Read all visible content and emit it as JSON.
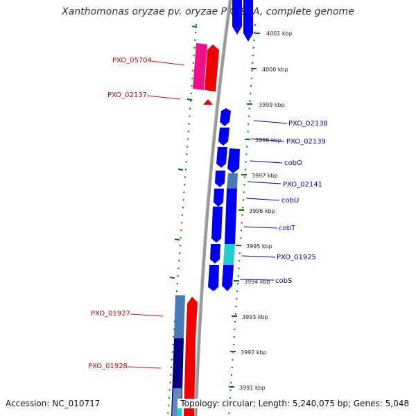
{
  "title": "Xanthomonas oryzae pv. oryzae PXO99A, complete genome",
  "footer": {
    "accession": "Accession: NC_010717",
    "topology": "Topology: circular; Length: 5,240,075 bp; Genes: 5,048"
  },
  "scale_labels": [
    "4001 kbp",
    "4000 kbp",
    "3999 kbp",
    "3998 kbp",
    "3997 kbp",
    "3996 kbp",
    "3995 kbp",
    "3994 kbp",
    "3993 kbp",
    "3992 kbp",
    "3991 kbp"
  ],
  "genes_left": [
    "PXO_05704",
    "PXO_02137",
    "PXO_01927",
    "PXO_01928"
  ],
  "genes_right": [
    "PXO_02138",
    "PXO_02139",
    "cobO",
    "PXO_02141",
    "cobU",
    "cobT",
    "PXO_01925",
    "cobS"
  ],
  "colors": {
    "forward": "#ee0000",
    "reverse": "#0000ee",
    "pink": "#ee1188",
    "steel": "#4a7ab5",
    "cyan": "#22cccc",
    "navy": "#000080",
    "backbone": "#999999",
    "ticks": "#007700"
  }
}
